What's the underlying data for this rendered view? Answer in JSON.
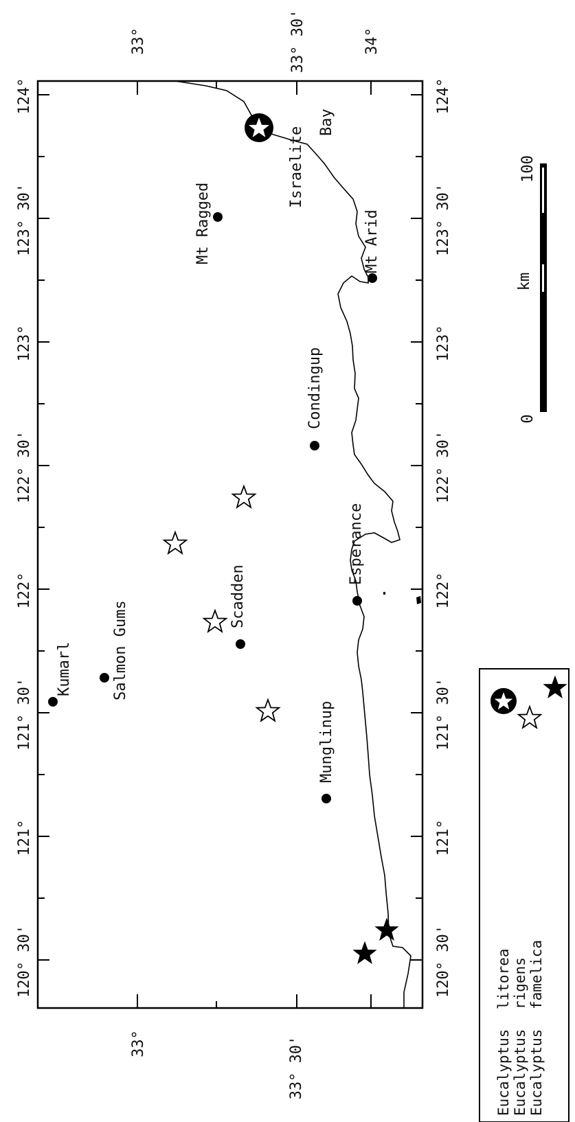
{
  "longitude_ticks": [
    "120° 30'",
    "121°",
    "121° 30'",
    "122°",
    "122° 30'",
    "123°",
    "123° 30'",
    "124°"
  ],
  "latitude_ticks": [
    "33°",
    "33° 30'",
    "34°"
  ],
  "places": [
    {
      "name": "Kumarl"
    },
    {
      "name": "Salmon Gums"
    },
    {
      "name": "Scadden"
    },
    {
      "name": "Mt Ragged"
    },
    {
      "name": "Condingup"
    },
    {
      "name": "Mt Arid"
    },
    {
      "name": "Israelite"
    },
    {
      "name": "Bay"
    },
    {
      "name": "Esperance"
    },
    {
      "name": "Munglinup"
    }
  ],
  "scale_bar": {
    "start": "0",
    "end": "100",
    "unit": "km"
  },
  "legend": [
    {
      "genus": "Eucalyptus",
      "species": "litorea",
      "symbol": "circled-star"
    },
    {
      "genus": "Eucalyptus",
      "species": "rigens",
      "symbol": "open-star"
    },
    {
      "genus": "Eucalyptus",
      "species": "famelica",
      "symbol": "filled-star"
    }
  ]
}
